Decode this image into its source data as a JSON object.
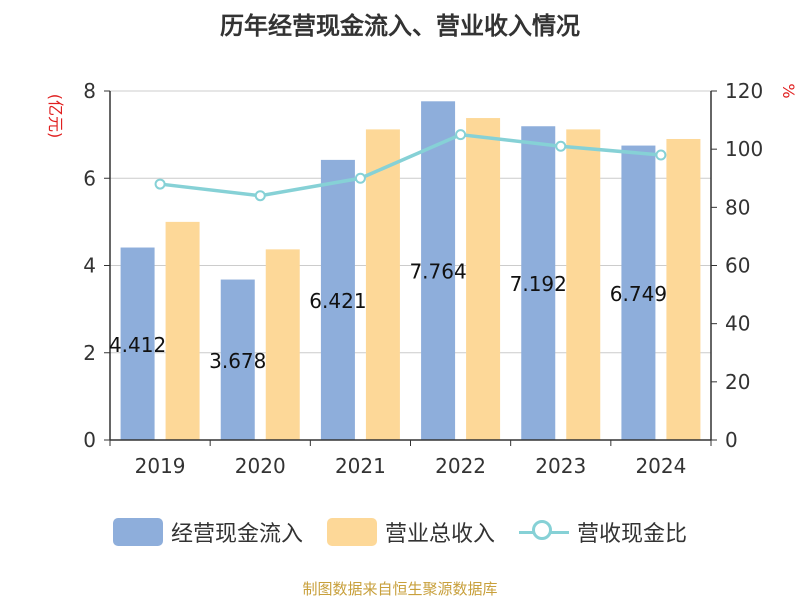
{
  "chart_data": {
    "type": "bar",
    "title": "历年经营现金流入、营业收入情况",
    "categories": [
      "2019",
      "2020",
      "2021",
      "2022",
      "2023",
      "2024"
    ],
    "y_left": {
      "label": "(亿元)",
      "ylim": [
        0,
        8
      ],
      "ticks": [
        0,
        2,
        4,
        6,
        8
      ]
    },
    "y_right": {
      "label": "%",
      "ylim": [
        0,
        120
      ],
      "ticks": [
        0,
        20,
        40,
        60,
        80,
        100,
        120
      ]
    },
    "series": [
      {
        "name": "经营现金流入",
        "type": "bar",
        "axis": "left",
        "color": "#8eaedb",
        "values": [
          4.412,
          3.678,
          6.421,
          7.764,
          7.192,
          6.749
        ],
        "labels": [
          "4.412",
          "3.678",
          "6.421",
          "7.764",
          "7.192",
          "6.749"
        ]
      },
      {
        "name": "营业总收入",
        "type": "bar",
        "axis": "left",
        "color": "#fdd898",
        "values": [
          5.0,
          4.37,
          7.12,
          7.38,
          7.12,
          6.9
        ]
      },
      {
        "name": "营收现金比",
        "type": "line",
        "axis": "right",
        "color": "#86d1d6",
        "values": [
          88,
          84,
          90,
          105,
          101,
          98
        ]
      }
    ],
    "grid": true,
    "legend_position": "bottom"
  },
  "source": "制图数据来自恒生聚源数据库"
}
